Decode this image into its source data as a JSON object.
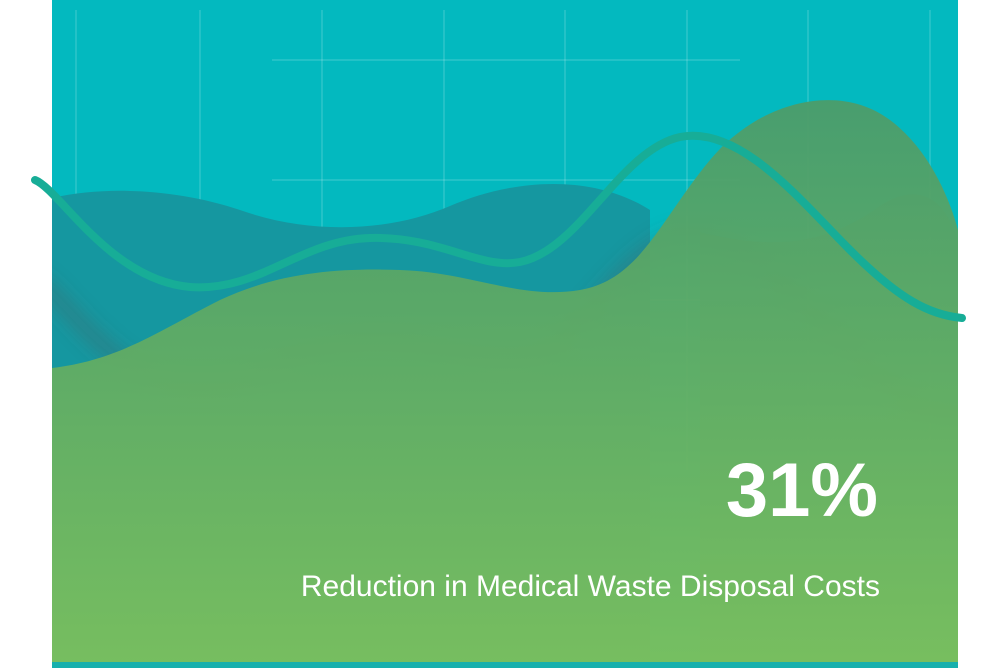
{
  "stat": {
    "value": "31%",
    "label": "Reduction in Medical Waste Disposal Costs"
  }
}
